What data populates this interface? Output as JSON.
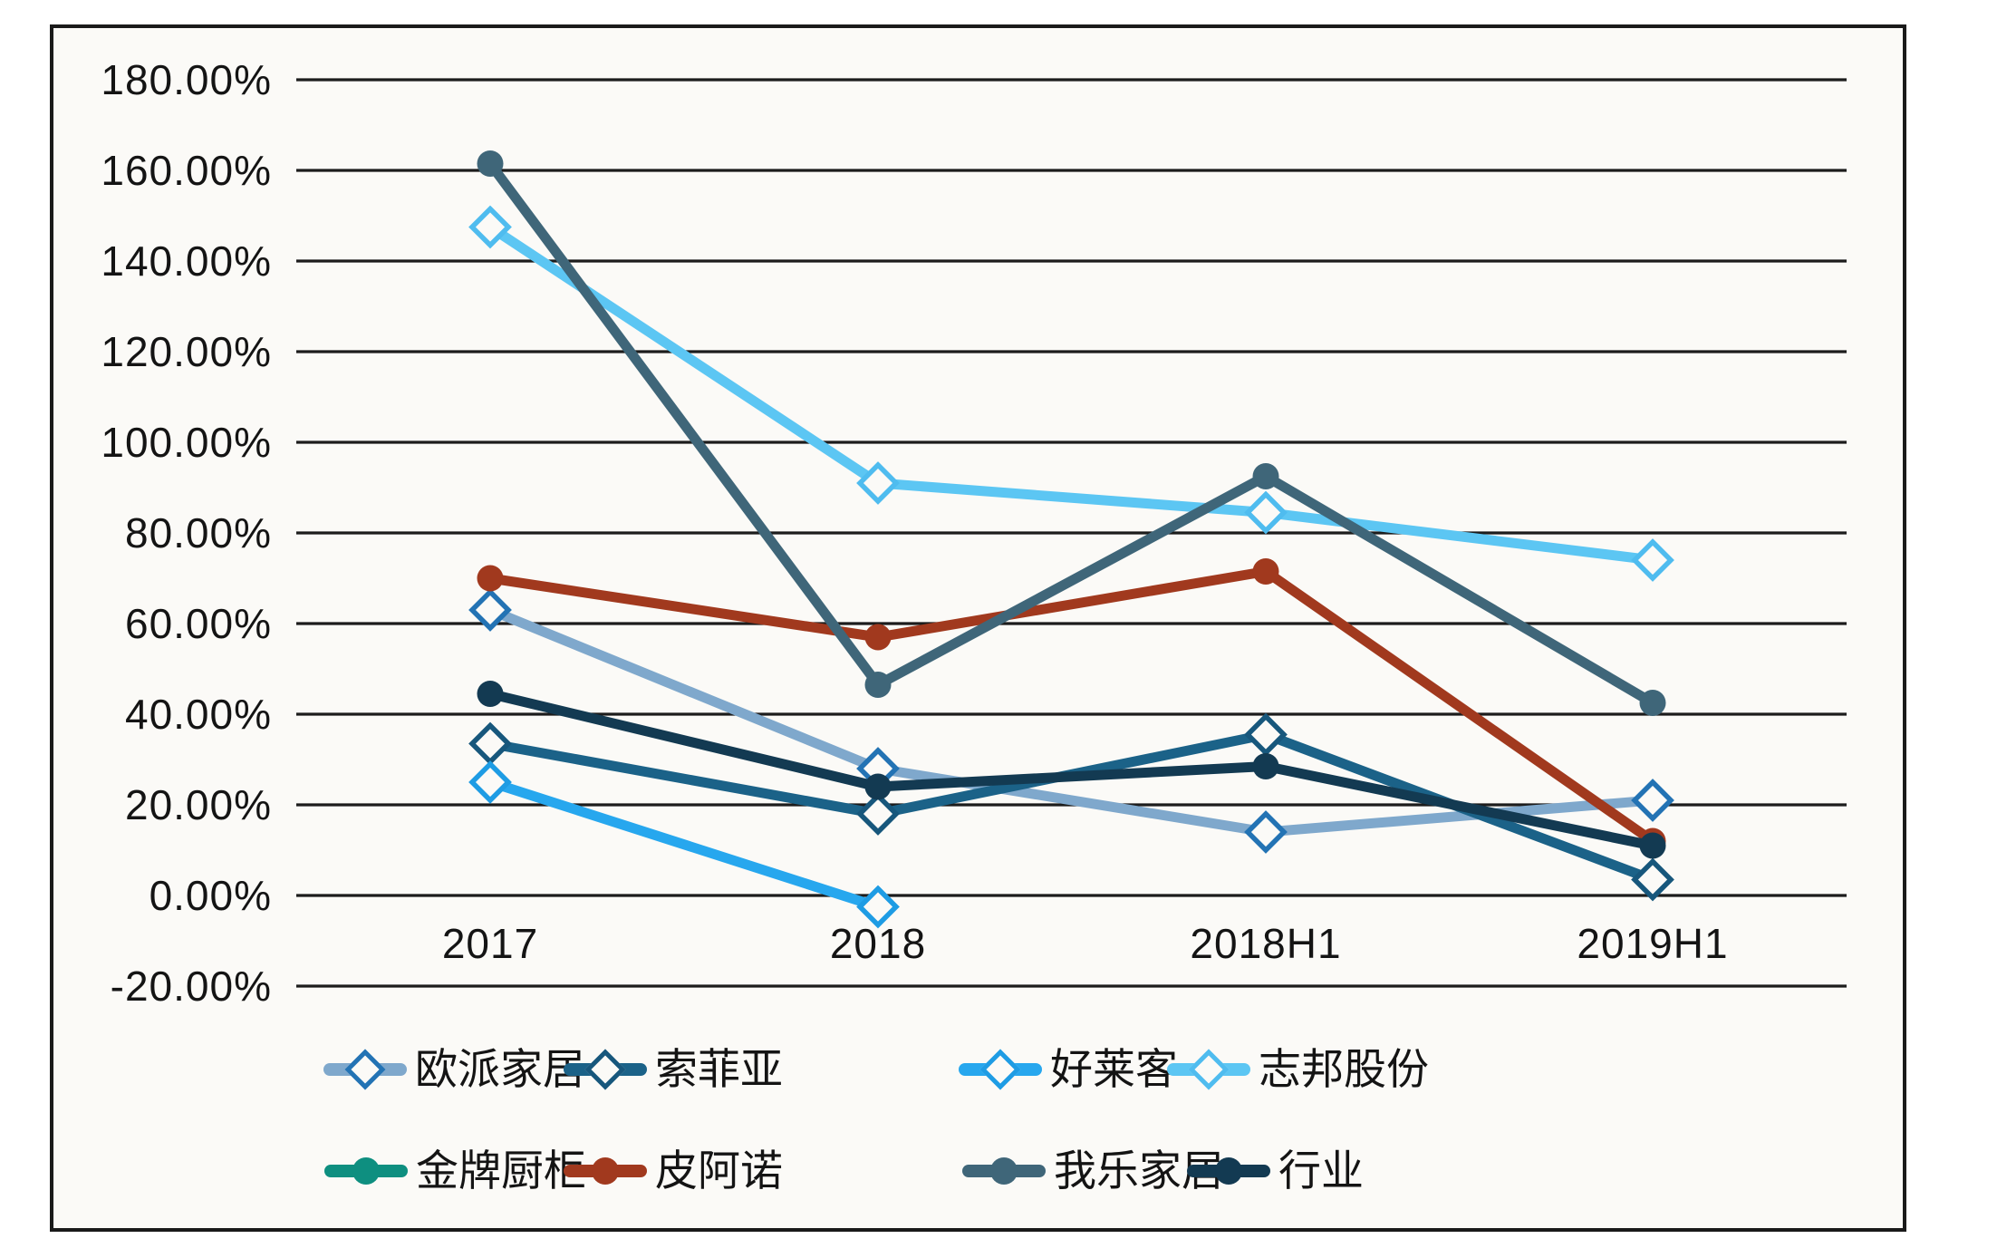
{
  "chart_data": {
    "type": "line",
    "title": "",
    "categories": [
      "2017",
      "2018",
      "2018H1",
      "2019H1"
    ],
    "series": [
      {
        "name": "欧派家居",
        "color": "#7FA8CC",
        "marker": "diamond",
        "marker_stroke": "#2373B4",
        "values": [
          63,
          28,
          14,
          21
        ]
      },
      {
        "name": "索菲亚",
        "color": "#1B6288",
        "marker": "diamond",
        "marker_stroke": "#17577C",
        "values": [
          33.5,
          18,
          35.5,
          3.5
        ]
      },
      {
        "name": "好莱客",
        "color": "#27A7EE",
        "marker": "diamond",
        "marker_stroke": "#1E9CE4",
        "values": [
          25,
          -2.5,
          null,
          null
        ]
      },
      {
        "name": "志邦股份",
        "color": "#5CC6F3",
        "marker": "diamond",
        "marker_stroke": "#4FBCEF",
        "values": [
          147.5,
          91,
          84.5,
          74
        ]
      },
      {
        "name": "金牌厨柜",
        "color": "#0E8F80",
        "marker": "circle",
        "marker_stroke": "#0E8F80",
        "values": [
          null,
          null,
          null,
          null
        ]
      },
      {
        "name": "皮阿诺",
        "color": "#A1391E",
        "marker": "circle",
        "marker_stroke": "#A1391E",
        "values": [
          70,
          57,
          71.5,
          12
        ]
      },
      {
        "name": "我乐家居",
        "color": "#3F6679",
        "marker": "circle",
        "marker_stroke": "#3F6679",
        "values": [
          161.5,
          46.5,
          92.5,
          42.5
        ]
      },
      {
        "name": "行业",
        "color": "#133A52",
        "marker": "circle",
        "marker_stroke": "#133A52",
        "values": [
          44.5,
          24,
          28.5,
          11
        ]
      }
    ],
    "y_ticks": [
      "180.00%",
      "160.00%",
      "140.00%",
      "120.00%",
      "100.00%",
      "80.00%",
      "60.00%",
      "40.00%",
      "20.00%",
      "0.00%",
      "-20.00%"
    ],
    "ylim": [
      -20,
      180
    ],
    "xlabel": "",
    "ylabel": "",
    "grid": true,
    "grid_color": "#1C1C1C",
    "background_color": "#FBFAF7",
    "legend_position": "bottom",
    "legend_rows": [
      [
        0,
        1,
        2,
        3
      ],
      [
        4,
        5,
        6,
        7
      ]
    ]
  }
}
